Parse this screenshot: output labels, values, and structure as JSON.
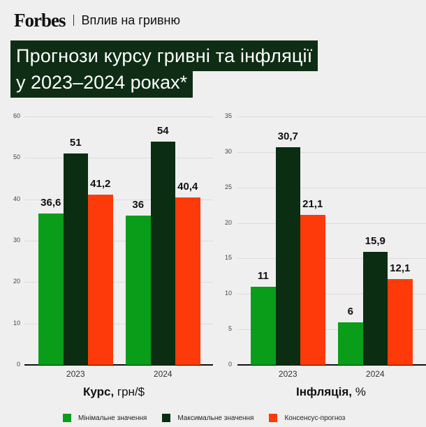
{
  "header": {
    "logo": "Forbes",
    "section": "Вплив на гривню"
  },
  "title": {
    "line1": "Прогнози курсу гривні та інфляції",
    "line2": "у 2023–2024 роках*"
  },
  "colors": {
    "min": "#0a9d1a",
    "max": "#0b2d12",
    "consensus": "#ff3a0a",
    "title_bg": "#0f2d14"
  },
  "legend": [
    {
      "label": "Мінімальне значення",
      "color": "#0a9d1a"
    },
    {
      "label": "Максимальне значення",
      "color": "#0b2d12"
    },
    {
      "label": "Консенсус-прогноз",
      "color": "#ff3a0a"
    }
  ],
  "chart_data": [
    {
      "type": "bar",
      "title": "Курс, грн/$",
      "xlabel_bold": "Курс,",
      "xlabel_rest": " грн/$",
      "ylabel": "",
      "categories": [
        "2023",
        "2024"
      ],
      "ylim": [
        0,
        60
      ],
      "yticks": [
        "0",
        "10",
        "20",
        "30",
        "40",
        "50",
        "60"
      ],
      "grid": true,
      "legend_position": "bottom",
      "series": [
        {
          "name": "Мінімальне значення",
          "values": [
            36.6,
            36
          ],
          "labels": [
            "36,6",
            "36"
          ]
        },
        {
          "name": "Максимальне значення",
          "values": [
            51,
            54
          ],
          "labels": [
            "51",
            "54"
          ]
        },
        {
          "name": "Консенсус-прогноз",
          "values": [
            41.2,
            40.4
          ],
          "labels": [
            "41,2",
            "40,4"
          ]
        }
      ]
    },
    {
      "type": "bar",
      "title": "Інфляція, %",
      "xlabel_bold": "Інфляція,",
      "xlabel_rest": " %",
      "ylabel": "",
      "categories": [
        "2023",
        "2024"
      ],
      "ylim": [
        0,
        35
      ],
      "yticks": [
        "0",
        "5",
        "10",
        "15",
        "20",
        "25",
        "30",
        "35"
      ],
      "grid": true,
      "legend_position": "bottom",
      "series": [
        {
          "name": "Мінімальне значення",
          "values": [
            11,
            6
          ],
          "labels": [
            "11",
            "6"
          ]
        },
        {
          "name": "Максимальне значення",
          "values": [
            30.7,
            15.9
          ],
          "labels": [
            "30,7",
            "15,9"
          ]
        },
        {
          "name": "Консенсус-прогноз",
          "values": [
            21.1,
            12.1
          ],
          "labels": [
            "21,1",
            "12,1"
          ]
        }
      ]
    }
  ]
}
